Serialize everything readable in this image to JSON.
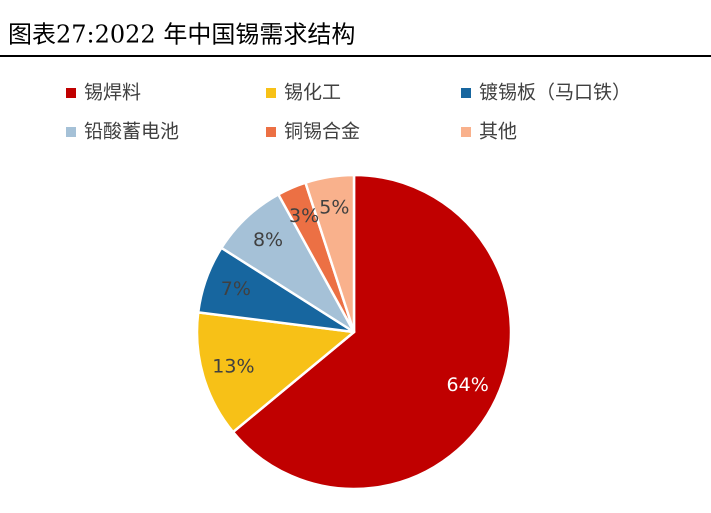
{
  "chart_data": {
    "type": "pie",
    "title": "图表27:2022 年中国锡需求结构",
    "categories": [
      "锡焊料",
      "锡化工",
      "镀锡板（马口铁）",
      "铅酸蓄电池",
      "铜锡合金",
      "其他"
    ],
    "values": [
      64,
      13,
      7,
      8,
      3,
      5
    ],
    "value_labels": [
      "64%",
      "13%",
      "7%",
      "8%",
      "3%",
      "5%"
    ],
    "colors": [
      "#C00000",
      "#F7C117",
      "#17669F",
      "#A5C1D7",
      "#EC7044",
      "#F9B18C"
    ]
  }
}
